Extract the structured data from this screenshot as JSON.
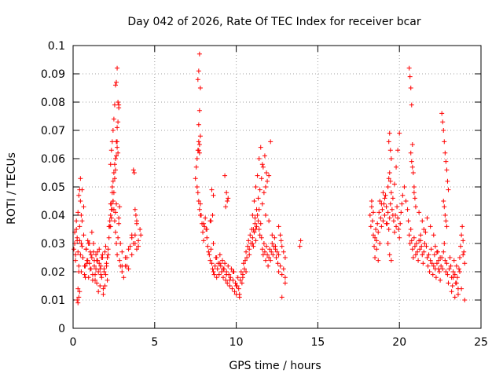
{
  "chart_data": {
    "type": "scatter",
    "title": "Day 042 of 2026, Rate Of TEC Index for receiver bcar",
    "xlabel": "GPS time / hours",
    "ylabel": "ROTI / TECUs",
    "xlim": [
      0,
      25
    ],
    "ylim": [
      0,
      0.1
    ],
    "xticks": [
      0,
      5,
      10,
      15,
      20,
      25
    ],
    "yticks": [
      0,
      0.01,
      0.02,
      0.03,
      0.04,
      0.05,
      0.06,
      0.07,
      0.08,
      0.09,
      0.1
    ],
    "xtick_labels": [
      "0",
      "5",
      "10",
      "15",
      "20",
      "25"
    ],
    "ytick_labels": [
      "0",
      "0.01",
      "0.02",
      "0.03",
      "0.04",
      "0.05",
      "0.06",
      "0.07",
      "0.08",
      "0.09",
      "0.1"
    ],
    "grid": true,
    "marker": "+",
    "color": "#ff0000",
    "series": [
      {
        "x": [
          0.05,
          0.1,
          0.15,
          0.2,
          0.25,
          0.3,
          0.35,
          0.4,
          0.45,
          0.5,
          0.55,
          0.6,
          0.65,
          0.7,
          0.75,
          0.8,
          0.85,
          0.9,
          0.95,
          1.0,
          1.05,
          1.1,
          1.15,
          1.2,
          1.25,
          1.3,
          1.35,
          1.4,
          1.45,
          1.5,
          1.55,
          1.6,
          1.65,
          1.7,
          1.75,
          1.8,
          1.85,
          1.9,
          1.95,
          2.0,
          2.05,
          2.1,
          2.15,
          2.2,
          2.25,
          2.3,
          2.35,
          2.4,
          2.45,
          2.5,
          2.55,
          2.6,
          2.65,
          2.7,
          2.75,
          2.8,
          2.85,
          2.9,
          3.0,
          3.1,
          3.2,
          3.3,
          3.4,
          3.5,
          3.6,
          3.7,
          3.8,
          3.9,
          4.0,
          4.1,
          4.15,
          0.1,
          0.2,
          0.3,
          0.4,
          0.5,
          0.6,
          0.7,
          0.8,
          0.9,
          1.0,
          1.1,
          1.2,
          1.3,
          1.4,
          1.5,
          1.6,
          1.7,
          1.8,
          1.9,
          2.0,
          2.1,
          2.2,
          2.3,
          2.4,
          2.5,
          2.6,
          2.7,
          2.8,
          2.9,
          3.0,
          3.2,
          3.4,
          3.6,
          3.8,
          4.0,
          0.15,
          0.25,
          0.35,
          0.45,
          0.55,
          0.65,
          0.75,
          0.85,
          0.95,
          1.05,
          1.15,
          1.25,
          1.35,
          1.45,
          1.55,
          1.65,
          1.75,
          1.85,
          1.95,
          2.05,
          2.15,
          2.25,
          2.35,
          2.45,
          2.55,
          2.65,
          2.75,
          2.85,
          3.0,
          3.3,
          3.6,
          3.9,
          2.3,
          2.35,
          2.4,
          2.45,
          2.5,
          2.55,
          2.6,
          2.65,
          2.7,
          2.75,
          2.8,
          2.7,
          2.65,
          2.6,
          2.55,
          2.5,
          2.45,
          2.4,
          2.35,
          2.3,
          2.7,
          2.75,
          2.8,
          2.65,
          2.6,
          3.7,
          3.75,
          3.8,
          3.85,
          3.9,
          0.25,
          0.3,
          0.35,
          0.4,
          0.45,
          0.5,
          0.55,
          0.3,
          0.35,
          0.4
        ],
        "y": [
          0.028,
          0.03,
          0.024,
          0.035,
          0.032,
          0.027,
          0.022,
          0.031,
          0.026,
          0.02,
          0.029,
          0.025,
          0.033,
          0.019,
          0.022,
          0.028,
          0.024,
          0.031,
          0.018,
          0.023,
          0.027,
          0.021,
          0.025,
          0.017,
          0.03,
          0.022,
          0.019,
          0.026,
          0.016,
          0.024,
          0.02,
          0.028,
          0.015,
          0.022,
          0.018,
          0.025,
          0.014,
          0.021,
          0.027,
          0.019,
          0.023,
          0.017,
          0.026,
          0.032,
          0.036,
          0.04,
          0.044,
          0.048,
          0.045,
          0.042,
          0.038,
          0.034,
          0.03,
          0.026,
          0.032,
          0.037,
          0.024,
          0.022,
          0.02,
          0.018,
          0.022,
          0.025,
          0.021,
          0.029,
          0.026,
          0.03,
          0.033,
          0.028,
          0.031,
          0.035,
          0.033,
          0.034,
          0.038,
          0.041,
          0.036,
          0.03,
          0.025,
          0.022,
          0.028,
          0.024,
          0.03,
          0.026,
          0.019,
          0.024,
          0.021,
          0.027,
          0.023,
          0.019,
          0.026,
          0.02,
          0.029,
          0.025,
          0.036,
          0.044,
          0.05,
          0.055,
          0.06,
          0.064,
          0.039,
          0.03,
          0.022,
          0.025,
          0.028,
          0.032,
          0.03,
          0.029,
          0.026,
          0.031,
          0.02,
          0.045,
          0.049,
          0.043,
          0.018,
          0.023,
          0.03,
          0.021,
          0.034,
          0.027,
          0.017,
          0.024,
          0.013,
          0.021,
          0.025,
          0.012,
          0.015,
          0.022,
          0.028,
          0.038,
          0.042,
          0.052,
          0.058,
          0.066,
          0.062,
          0.043,
          0.027,
          0.022,
          0.033,
          0.037,
          0.058,
          0.063,
          0.066,
          0.07,
          0.074,
          0.079,
          0.086,
          0.087,
          0.092,
          0.08,
          0.078,
          0.066,
          0.061,
          0.056,
          0.053,
          0.048,
          0.045,
          0.042,
          0.039,
          0.036,
          0.071,
          0.073,
          0.079,
          0.044,
          0.041,
          0.056,
          0.055,
          0.042,
          0.04,
          0.038,
          0.01,
          0.009,
          0.047,
          0.049,
          0.053,
          0.04,
          0.038,
          0.014,
          0.011,
          0.013
        ]
      },
      {
        "x": [
          7.5,
          7.55,
          7.6,
          7.65,
          7.7,
          7.75,
          7.8,
          7.85,
          7.9,
          7.95,
          8.0,
          8.05,
          8.1,
          8.15,
          8.2,
          8.25,
          8.3,
          8.35,
          8.4,
          8.45,
          8.5,
          8.55,
          8.6,
          8.65,
          8.7,
          8.75,
          8.8,
          8.85,
          8.9,
          8.95,
          9.0,
          9.05,
          9.1,
          9.15,
          9.2,
          9.25,
          9.3,
          9.35,
          9.4,
          9.45,
          9.5,
          9.55,
          9.6,
          9.65,
          9.7,
          9.75,
          9.8,
          9.85,
          9.9,
          9.95,
          10.0,
          10.05,
          10.1,
          10.15,
          10.2,
          10.25,
          10.3,
          10.35,
          10.4,
          10.45,
          10.5,
          10.55,
          10.6,
          10.65,
          10.7,
          10.75,
          10.8,
          10.85,
          10.9,
          10.95,
          11.0,
          11.05,
          11.1,
          11.15,
          11.2,
          11.25,
          11.3,
          11.35,
          11.4,
          11.45,
          11.5,
          11.55,
          11.6,
          11.65,
          11.7,
          11.75,
          11.8,
          11.85,
          11.9,
          11.95,
          12.0,
          12.05,
          12.1,
          12.15,
          12.2,
          12.25,
          12.3,
          12.35,
          12.4,
          12.45,
          12.5,
          12.55,
          12.6,
          12.7,
          12.8,
          12.9,
          13.0,
          13.9,
          13.95,
          7.7,
          7.75,
          7.8,
          7.65,
          7.7,
          7.75,
          7.6,
          7.65,
          7.7,
          7.75,
          7.8,
          7.7,
          7.75,
          7.8,
          8.0,
          8.2,
          8.4,
          8.6,
          8.8,
          9.0,
          9.2,
          9.4,
          9.6,
          9.8,
          10.0,
          10.2,
          10.4,
          10.6,
          10.8,
          11.0,
          11.2,
          11.4,
          11.6,
          11.8,
          12.0,
          12.2,
          12.4,
          12.6,
          12.8,
          13.0,
          11.0,
          11.1,
          11.2,
          11.3,
          11.4,
          11.5,
          11.6,
          11.7,
          11.8,
          11.9,
          12.0,
          12.1,
          11.05,
          11.15,
          11.25,
          11.35,
          11.45,
          11.55,
          11.65,
          11.75,
          11.85,
          9.3,
          9.4,
          9.5,
          9.35,
          9.45,
          8.5,
          8.6,
          8.55,
          8.45,
          12.6,
          12.7,
          12.75,
          12.8,
          12.9,
          13.0
        ],
        "y": [
          0.053,
          0.057,
          0.06,
          0.063,
          0.066,
          0.062,
          0.044,
          0.04,
          0.037,
          0.034,
          0.031,
          0.036,
          0.039,
          0.035,
          0.032,
          0.029,
          0.027,
          0.026,
          0.024,
          0.028,
          0.023,
          0.021,
          0.02,
          0.019,
          0.022,
          0.025,
          0.018,
          0.021,
          0.023,
          0.019,
          0.026,
          0.022,
          0.02,
          0.024,
          0.018,
          0.021,
          0.023,
          0.017,
          0.02,
          0.016,
          0.022,
          0.019,
          0.015,
          0.018,
          0.021,
          0.014,
          0.017,
          0.02,
          0.013,
          0.016,
          0.012,
          0.015,
          0.018,
          0.014,
          0.011,
          0.017,
          0.02,
          0.016,
          0.019,
          0.023,
          0.021,
          0.024,
          0.027,
          0.025,
          0.029,
          0.031,
          0.028,
          0.033,
          0.03,
          0.035,
          0.032,
          0.029,
          0.034,
          0.037,
          0.031,
          0.036,
          0.04,
          0.038,
          0.035,
          0.033,
          0.037,
          0.032,
          0.028,
          0.026,
          0.03,
          0.027,
          0.024,
          0.029,
          0.026,
          0.022,
          0.025,
          0.028,
          0.024,
          0.027,
          0.03,
          0.026,
          0.029,
          0.032,
          0.028,
          0.025,
          0.027,
          0.023,
          0.02,
          0.022,
          0.019,
          0.021,
          0.018,
          0.029,
          0.031,
          0.072,
          0.077,
          0.085,
          0.088,
          0.091,
          0.097,
          0.05,
          0.048,
          0.045,
          0.042,
          0.04,
          0.063,
          0.065,
          0.068,
          0.037,
          0.035,
          0.038,
          0.03,
          0.025,
          0.023,
          0.021,
          0.019,
          0.017,
          0.02,
          0.015,
          0.012,
          0.018,
          0.02,
          0.026,
          0.03,
          0.035,
          0.042,
          0.044,
          0.04,
          0.038,
          0.033,
          0.029,
          0.026,
          0.011,
          0.016,
          0.04,
          0.045,
          0.05,
          0.054,
          0.06,
          0.064,
          0.058,
          0.048,
          0.05,
          0.052,
          0.054,
          0.066,
          0.035,
          0.039,
          0.042,
          0.046,
          0.049,
          0.053,
          0.057,
          0.061,
          0.055,
          0.054,
          0.048,
          0.046,
          0.043,
          0.045,
          0.049,
          0.047,
          0.04,
          0.038,
          0.036,
          0.033,
          0.031,
          0.029,
          0.027,
          0.025
        ]
      },
      {
        "x": [
          18.2,
          18.25,
          18.3,
          18.35,
          18.4,
          18.45,
          18.5,
          18.55,
          18.6,
          18.65,
          18.7,
          18.75,
          18.8,
          18.85,
          18.9,
          18.95,
          19.0,
          19.05,
          19.1,
          19.15,
          19.2,
          19.25,
          19.3,
          19.35,
          19.4,
          19.45,
          19.5,
          19.55,
          19.6,
          19.65,
          19.7,
          19.75,
          19.8,
          19.85,
          19.9,
          19.95,
          20.0,
          20.05,
          20.1,
          20.15,
          20.2,
          20.3,
          20.4,
          20.5,
          20.55,
          20.6,
          20.65,
          20.7,
          20.75,
          20.8,
          20.85,
          20.9,
          20.95,
          21.0,
          21.05,
          21.1,
          21.15,
          21.2,
          21.25,
          21.3,
          21.35,
          21.4,
          21.45,
          21.5,
          21.55,
          21.6,
          21.65,
          21.7,
          21.75,
          21.8,
          21.85,
          21.9,
          21.95,
          22.0,
          22.05,
          22.1,
          22.15,
          22.2,
          22.25,
          22.3,
          22.35,
          22.4,
          22.45,
          22.5,
          22.55,
          22.6,
          22.65,
          22.7,
          22.75,
          22.8,
          22.85,
          22.9,
          22.95,
          23.0,
          23.05,
          23.1,
          23.15,
          23.2,
          23.25,
          23.3,
          23.35,
          23.4,
          23.45,
          23.5,
          23.55,
          23.6,
          23.65,
          23.7,
          23.75,
          23.8,
          23.85,
          23.9,
          23.95,
          24.0,
          18.3,
          18.4,
          18.5,
          18.6,
          18.7,
          18.8,
          18.9,
          19.0,
          19.1,
          19.2,
          19.3,
          19.4,
          19.5,
          19.6,
          19.7,
          19.8,
          19.9,
          20.0,
          20.6,
          20.65,
          20.7,
          20.75,
          20.8,
          20.7,
          20.75,
          20.8,
          20.85,
          20.9,
          20.9,
          20.95,
          21.0,
          22.6,
          22.65,
          22.7,
          22.75,
          22.8,
          22.85,
          22.9,
          22.95,
          23.0,
          22.7,
          22.75,
          22.8,
          22.85,
          22.9,
          19.35,
          19.4,
          19.45,
          19.5,
          19.4,
          19.45,
          19.3,
          19.35,
          21.3,
          21.5,
          21.7,
          21.9,
          22.1,
          22.3,
          22.5,
          23.2,
          23.4,
          23.6,
          23.8,
          24.0,
          23.3,
          23.5,
          23.7,
          23.9,
          22.2,
          22.4,
          21.2,
          21.4
        ],
        "y": [
          0.04,
          0.036,
          0.043,
          0.038,
          0.033,
          0.029,
          0.025,
          0.035,
          0.031,
          0.037,
          0.034,
          0.041,
          0.045,
          0.039,
          0.036,
          0.042,
          0.038,
          0.044,
          0.04,
          0.047,
          0.043,
          0.037,
          0.041,
          0.035,
          0.039,
          0.044,
          0.048,
          0.042,
          0.046,
          0.038,
          0.034,
          0.04,
          0.036,
          0.043,
          0.039,
          0.035,
          0.032,
          0.037,
          0.041,
          0.044,
          0.047,
          0.05,
          0.045,
          0.042,
          0.038,
          0.033,
          0.03,
          0.035,
          0.031,
          0.028,
          0.025,
          0.032,
          0.029,
          0.026,
          0.03,
          0.027,
          0.024,
          0.031,
          0.028,
          0.033,
          0.029,
          0.026,
          0.023,
          0.027,
          0.03,
          0.034,
          0.029,
          0.025,
          0.022,
          0.026,
          0.02,
          0.024,
          0.028,
          0.023,
          0.019,
          0.022,
          0.026,
          0.021,
          0.018,
          0.023,
          0.027,
          0.024,
          0.02,
          0.017,
          0.022,
          0.025,
          0.021,
          0.027,
          0.03,
          0.024,
          0.02,
          0.023,
          0.019,
          0.016,
          0.021,
          0.025,
          0.022,
          0.018,
          0.015,
          0.02,
          0.024,
          0.019,
          0.016,
          0.022,
          0.018,
          0.014,
          0.021,
          0.025,
          0.029,
          0.033,
          0.036,
          0.031,
          0.027,
          0.023,
          0.045,
          0.041,
          0.032,
          0.028,
          0.024,
          0.03,
          0.044,
          0.048,
          0.046,
          0.037,
          0.03,
          0.026,
          0.024,
          0.04,
          0.051,
          0.057,
          0.063,
          0.069,
          0.092,
          0.089,
          0.085,
          0.079,
          0.065,
          0.062,
          0.059,
          0.057,
          0.055,
          0.05,
          0.048,
          0.046,
          0.043,
          0.076,
          0.073,
          0.07,
          0.066,
          0.062,
          0.059,
          0.056,
          0.052,
          0.049,
          0.045,
          0.043,
          0.04,
          0.038,
          0.036,
          0.066,
          0.069,
          0.063,
          0.06,
          0.055,
          0.052,
          0.05,
          0.053,
          0.031,
          0.035,
          0.039,
          0.036,
          0.033,
          0.027,
          0.025,
          0.013,
          0.011,
          0.012,
          0.014,
          0.01,
          0.018,
          0.016,
          0.02,
          0.026,
          0.029,
          0.021,
          0.041,
          0.038
        ]
      }
    ]
  }
}
